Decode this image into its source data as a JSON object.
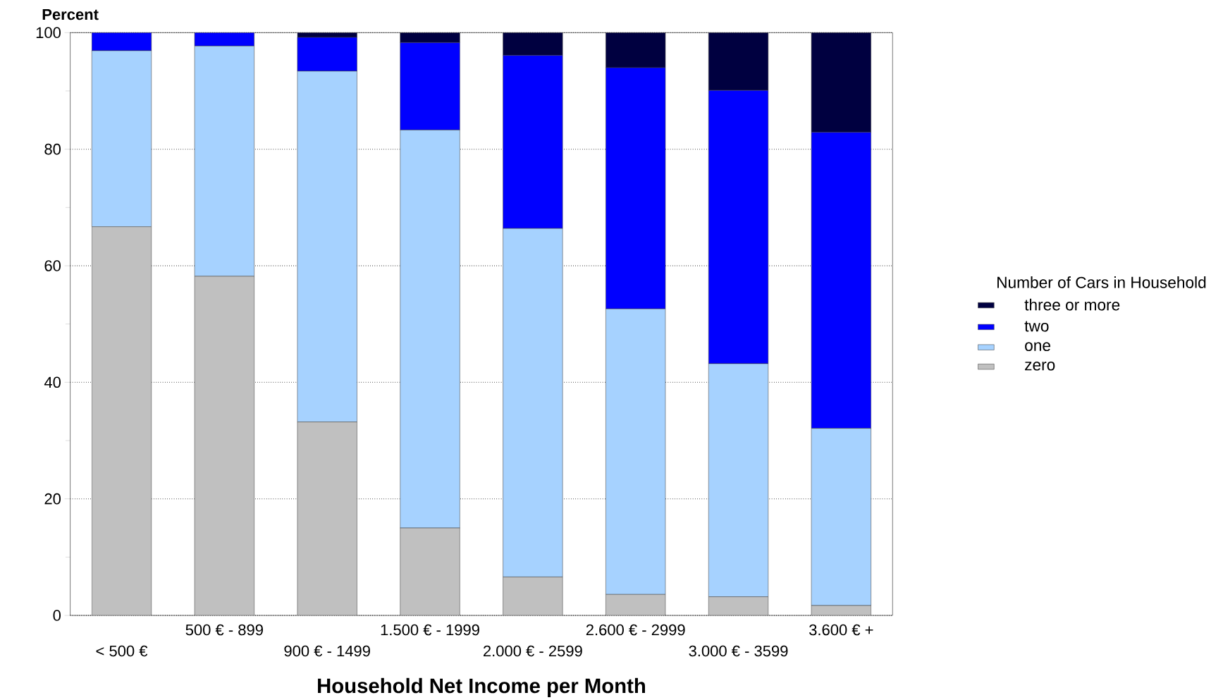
{
  "chart_data": {
    "type": "bar",
    "stacked": true,
    "xlabel": "Household Net Income per Month",
    "ylabel": "Percent",
    "legend_title": "Number of Cars in Household",
    "categories": [
      "< 500 €",
      "500 € - 899",
      "900 € - 1499",
      "1.500 € - 1999",
      "2.000 € - 2599",
      "2.600 € - 2999",
      "3.000 € - 3599",
      "3.600 € +"
    ],
    "series": [
      {
        "name": "zero",
        "color": "#c0c0c0",
        "values": [
          66.7,
          58.2,
          33.2,
          15.0,
          6.6,
          3.6,
          3.2,
          1.7
        ]
      },
      {
        "name": "one",
        "color": "#a6d2ff",
        "values": [
          30.2,
          39.5,
          60.2,
          68.3,
          59.8,
          49.0,
          40.0,
          30.4
        ]
      },
      {
        "name": "two",
        "color": "#0000ff",
        "values": [
          3.1,
          2.3,
          5.8,
          15.0,
          29.7,
          41.4,
          46.9,
          50.8
        ]
      },
      {
        "name": "three or more",
        "color": "#000040",
        "values": [
          0,
          0,
          0.8,
          1.7,
          3.9,
          6.0,
          9.9,
          17.1
        ]
      }
    ],
    "ylim": [
      0,
      100
    ],
    "yticks": [
      0,
      20,
      40,
      60,
      80,
      100
    ],
    "grid": "y",
    "legend": "right"
  }
}
